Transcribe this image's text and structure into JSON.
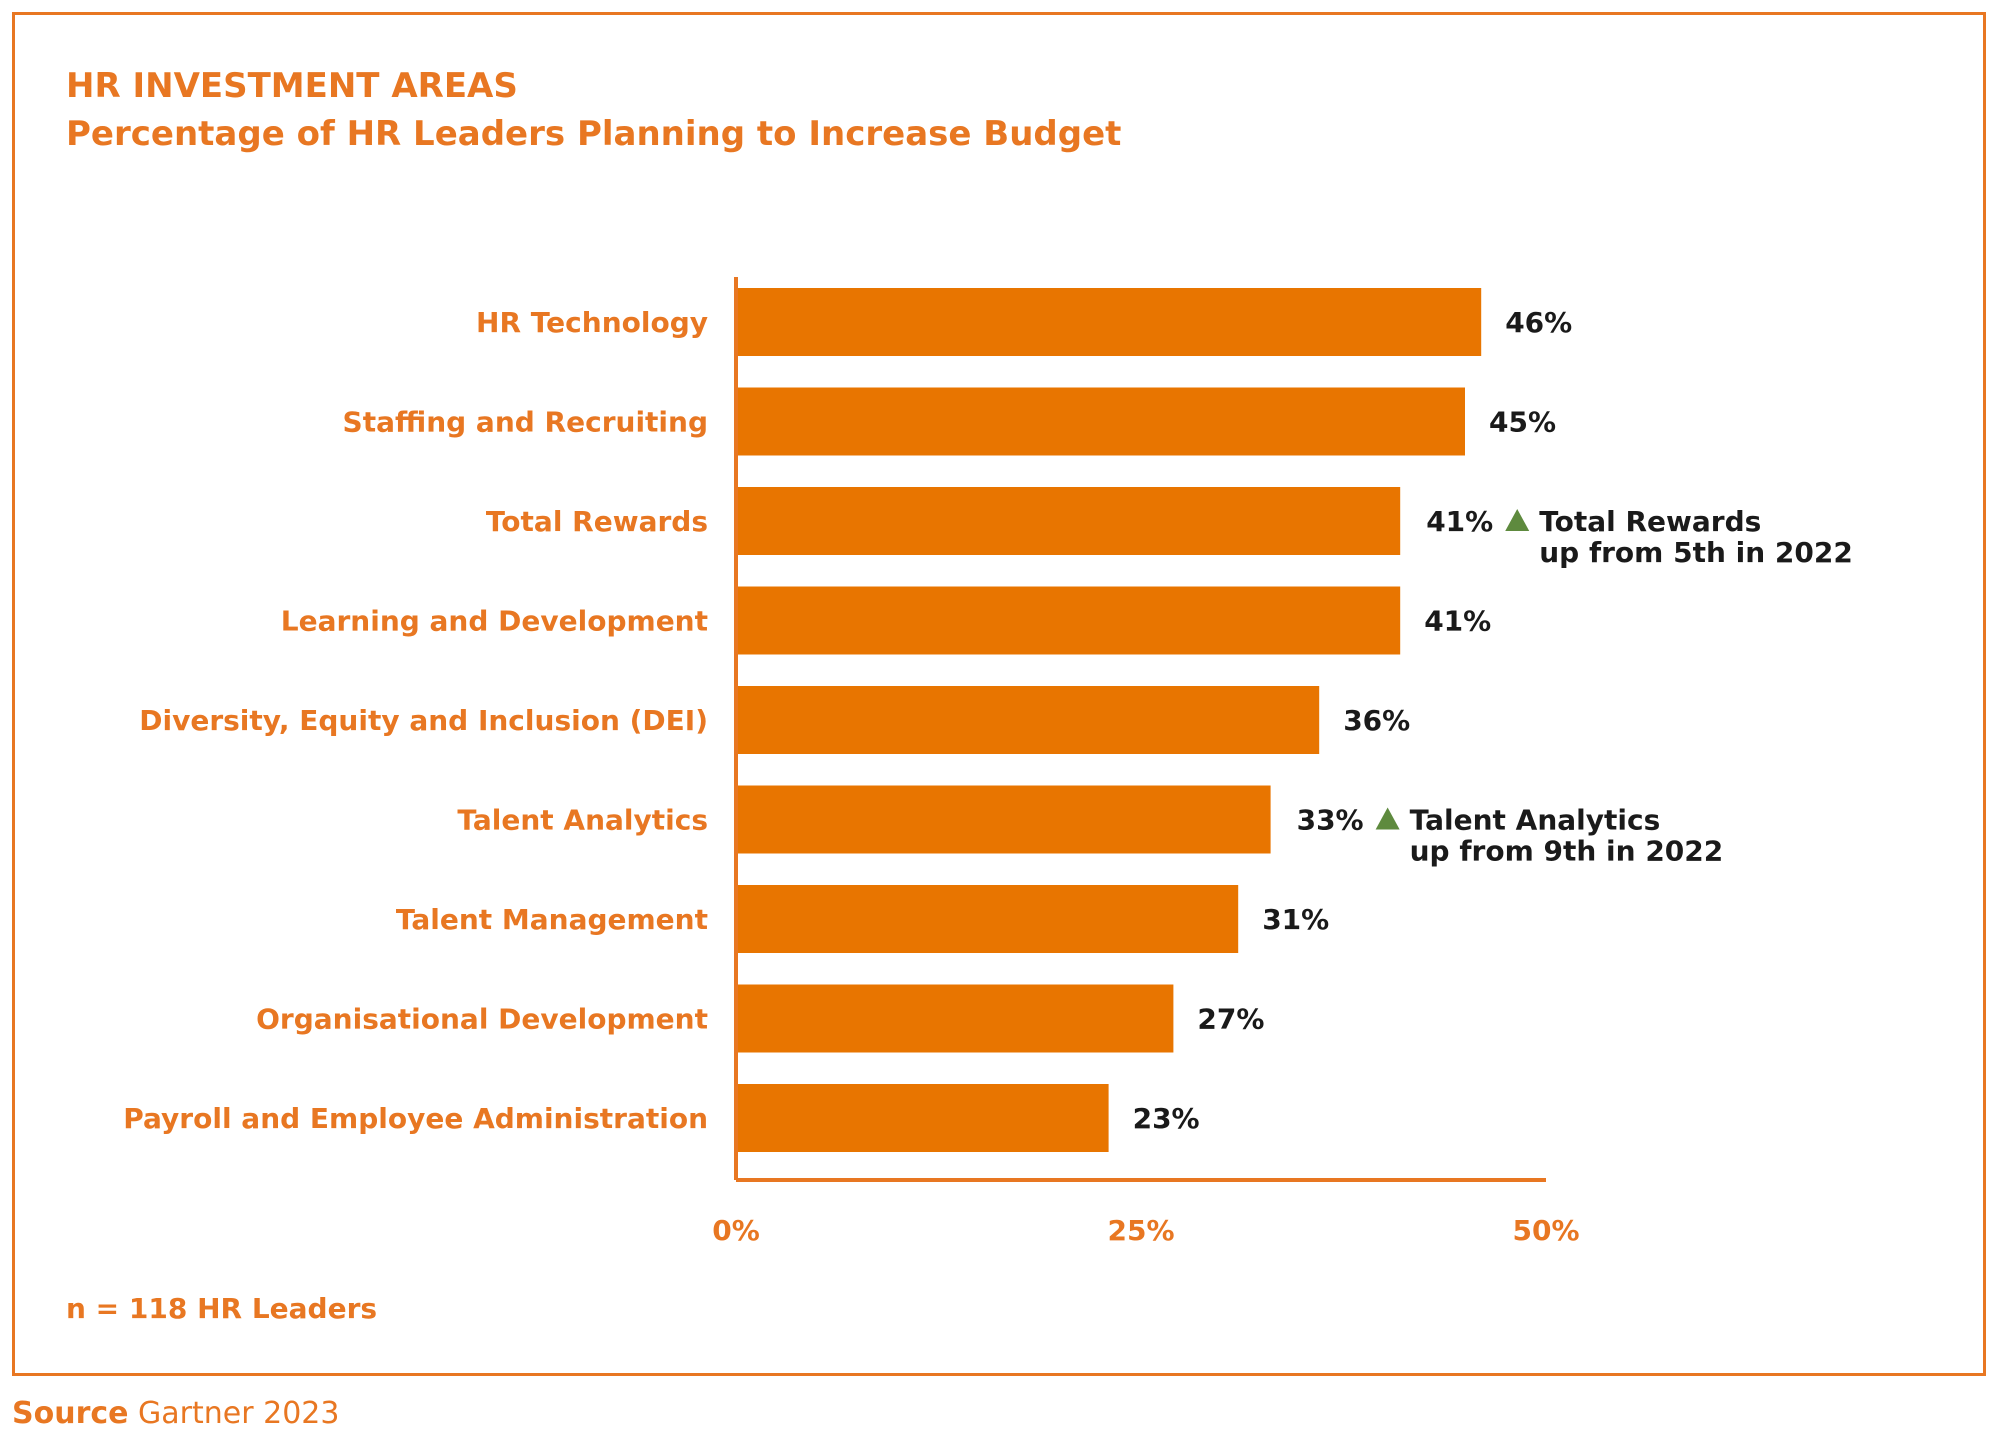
{
  "header": {
    "title": "HR INVESTMENT AREAS",
    "subtitle": "Percentage of HR Leaders Planning to Increase Budget"
  },
  "footer": {
    "note": "n = 118 HR Leaders",
    "source_label": "Source",
    "source_text": "Gartner 2023"
  },
  "colors": {
    "accent": "#e87722",
    "bar": "#e87500",
    "label": "#e87722",
    "value": "#1a1a1a",
    "arrow": "#5e8a3e"
  },
  "chart_data": {
    "type": "bar",
    "orientation": "horizontal",
    "title": "HR INVESTMENT AREAS",
    "subtitle": "Percentage of HR Leaders Planning to Increase Budget",
    "categories": [
      "HR Technology",
      "Staffing and Recruiting",
      "Total Rewards",
      "Learning and Development",
      "Diversity, Equity and Inclusion (DEI)",
      "Talent Analytics",
      "Talent Management",
      "Organisational Development",
      "Payroll and Employee Administration"
    ],
    "values": [
      46,
      45,
      41,
      41,
      36,
      33,
      31,
      27,
      23
    ],
    "value_labels": [
      "46%",
      "45%",
      "41%",
      "41%",
      "36%",
      "33%",
      "31%",
      "27%",
      "23%"
    ],
    "xlim": [
      0,
      50
    ],
    "x_ticks": [
      0,
      25,
      50
    ],
    "x_tick_labels": [
      "0%",
      "25%",
      "50%"
    ],
    "grid": false,
    "annotations": [
      {
        "category": "Total Rewards",
        "icon": "up-arrow-icon",
        "lines": [
          "Total Rewards",
          "up from 5th in 2022"
        ]
      },
      {
        "category": "Talent Analytics",
        "icon": "up-arrow-icon",
        "lines": [
          "Talent Analytics",
          "up from 9th in 2022"
        ]
      }
    ]
  }
}
